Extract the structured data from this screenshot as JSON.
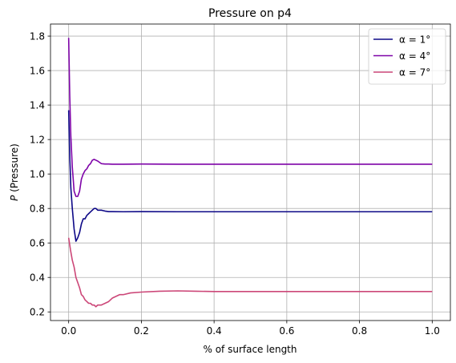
{
  "chart_data": {
    "type": "line",
    "title": "Pressure on p4",
    "xlabel": "% of surface length",
    "ylabel": "P (Pressure)",
    "xlim": [
      -0.05,
      1.05
    ],
    "ylim": [
      0.15,
      1.87
    ],
    "xticks": [
      0.0,
      0.2,
      0.4,
      0.6,
      0.8,
      1.0
    ],
    "xtick_labels": [
      "0.0",
      "0.2",
      "0.4",
      "0.6",
      "0.8",
      "1.0"
    ],
    "yticks": [
      0.2,
      0.4,
      0.6,
      0.8,
      1.0,
      1.2,
      1.4,
      1.6,
      1.8
    ],
    "ytick_labels": [
      "0.2",
      "0.4",
      "0.6",
      "0.8",
      "1.0",
      "1.2",
      "1.4",
      "1.6",
      "1.8"
    ],
    "grid": true,
    "legend_position": "top-right",
    "series": [
      {
        "name": "α = 1°",
        "color": "#0d0887",
        "x": [
          0.0,
          0.003,
          0.006,
          0.01,
          0.015,
          0.02,
          0.025,
          0.03,
          0.035,
          0.04,
          0.045,
          0.05,
          0.055,
          0.06,
          0.065,
          0.07,
          0.075,
          0.08,
          0.09,
          0.1,
          0.11,
          0.12,
          0.15,
          0.2,
          0.3,
          0.4,
          0.5,
          0.6,
          0.7,
          0.8,
          0.9,
          1.0
        ],
        "y": [
          1.37,
          1.1,
          0.92,
          0.8,
          0.68,
          0.61,
          0.63,
          0.66,
          0.71,
          0.74,
          0.74,
          0.76,
          0.77,
          0.78,
          0.79,
          0.8,
          0.8,
          0.79,
          0.79,
          0.785,
          0.782,
          0.782,
          0.781,
          0.782,
          0.781,
          0.781,
          0.781,
          0.781,
          0.781,
          0.781,
          0.781,
          0.781
        ]
      },
      {
        "name": "α = 4°",
        "color": "#7e03a8",
        "x": [
          0.0,
          0.003,
          0.006,
          0.01,
          0.015,
          0.02,
          0.025,
          0.03,
          0.035,
          0.04,
          0.045,
          0.05,
          0.055,
          0.06,
          0.065,
          0.07,
          0.075,
          0.08,
          0.09,
          0.1,
          0.11,
          0.12,
          0.15,
          0.2,
          0.3,
          0.4,
          0.5,
          0.6,
          0.7,
          0.8,
          0.9,
          1.0
        ],
        "y": [
          1.79,
          1.45,
          1.22,
          1.04,
          0.9,
          0.87,
          0.87,
          0.9,
          0.97,
          1.0,
          1.02,
          1.03,
          1.05,
          1.06,
          1.08,
          1.085,
          1.08,
          1.075,
          1.06,
          1.058,
          1.058,
          1.057,
          1.057,
          1.058,
          1.057,
          1.057,
          1.057,
          1.057,
          1.057,
          1.057,
          1.057,
          1.057
        ]
      },
      {
        "name": "α = 7°",
        "color": "#cc4778",
        "x": [
          0.0,
          0.005,
          0.01,
          0.015,
          0.02,
          0.025,
          0.03,
          0.035,
          0.04,
          0.045,
          0.05,
          0.055,
          0.06,
          0.065,
          0.07,
          0.075,
          0.08,
          0.085,
          0.09,
          0.1,
          0.11,
          0.12,
          0.13,
          0.14,
          0.15,
          0.17,
          0.2,
          0.25,
          0.3,
          0.35,
          0.4,
          0.5,
          0.6,
          0.7,
          0.8,
          0.9,
          1.0
        ],
        "y": [
          0.63,
          0.56,
          0.5,
          0.46,
          0.4,
          0.37,
          0.34,
          0.3,
          0.29,
          0.27,
          0.26,
          0.25,
          0.25,
          0.24,
          0.24,
          0.23,
          0.24,
          0.24,
          0.24,
          0.25,
          0.26,
          0.28,
          0.29,
          0.3,
          0.3,
          0.31,
          0.315,
          0.32,
          0.322,
          0.32,
          0.318,
          0.318,
          0.318,
          0.318,
          0.318,
          0.318,
          0.318
        ]
      }
    ]
  }
}
